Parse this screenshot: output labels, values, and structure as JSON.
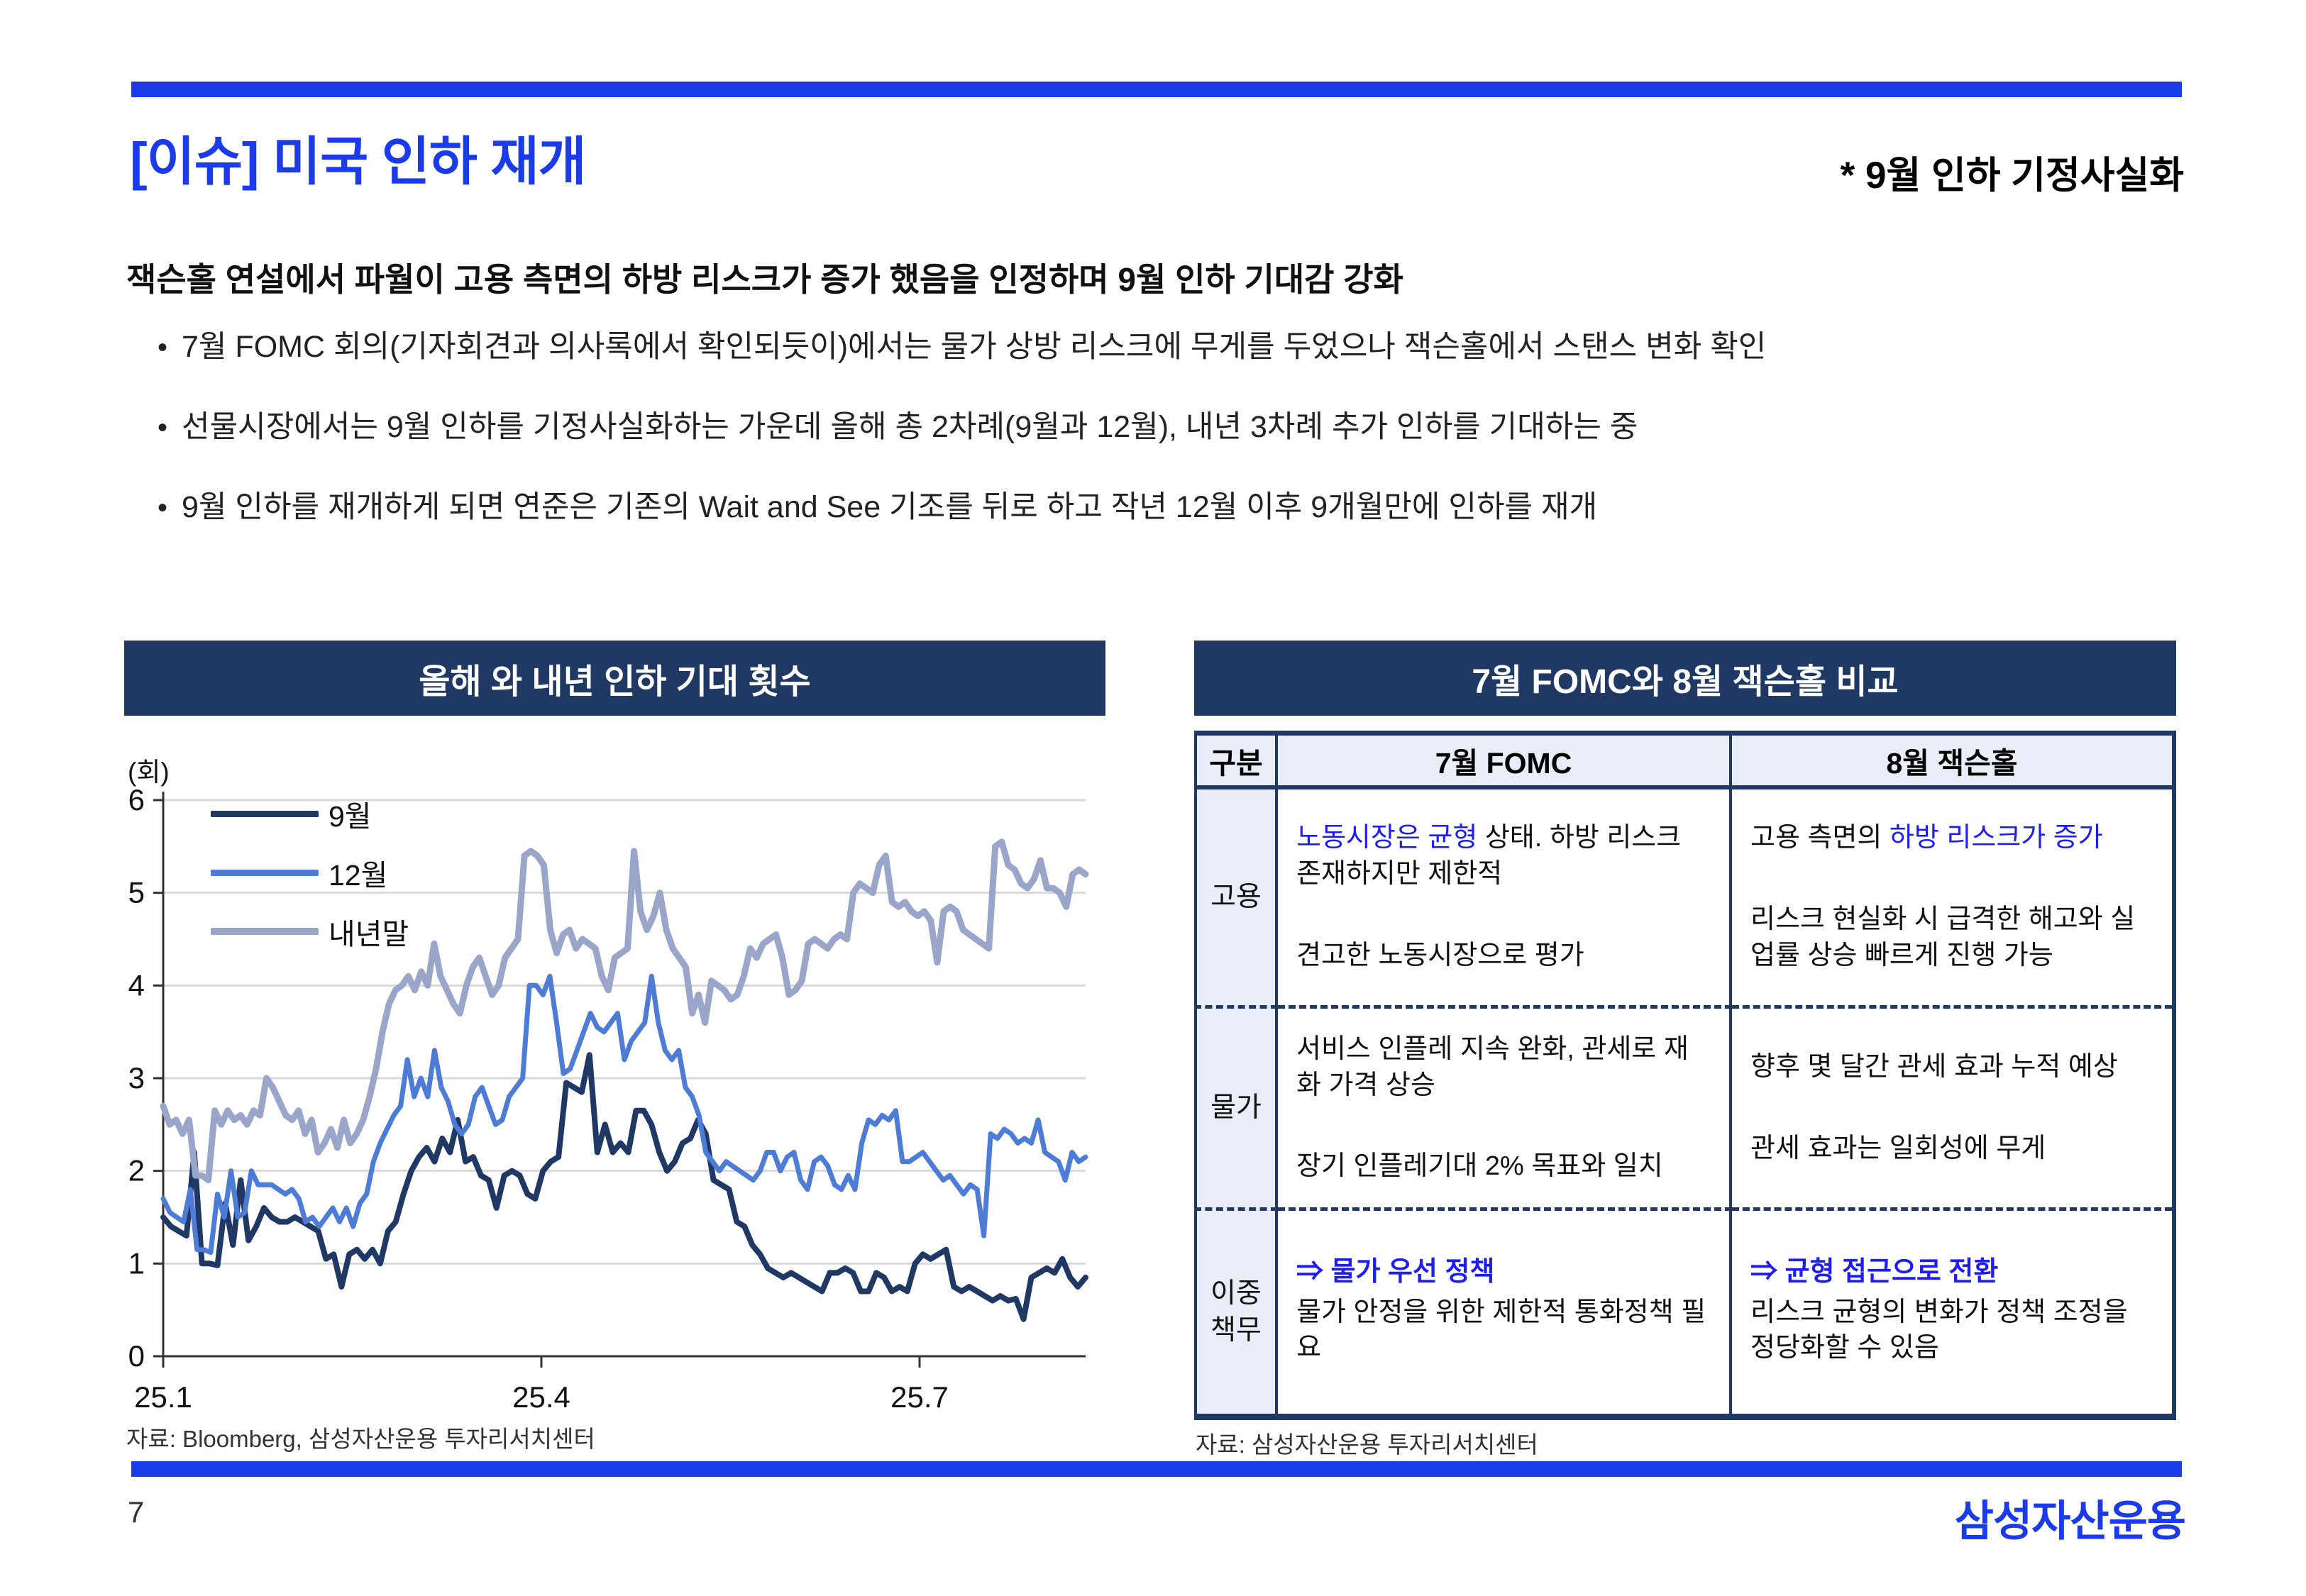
{
  "page": {
    "number": "7",
    "logo": "삼성자산운용"
  },
  "header": {
    "title": "[이슈] 미국 인하 재개",
    "subtitle": "* 9월 인하 기정사실화",
    "accent_color": "#1C3BE8"
  },
  "lede": "잭슨홀 연설에서 파월이 고용 측면의 하방 리스크가 증가 했음을 인정하며 9월 인하 기대감 강화",
  "bullets": [
    "7월 FOMC 회의(기자회견과 의사록에서 확인되듯이)에서는 물가 상방 리스크에 무게를 두었으나 잭슨홀에서 스탠스 변화 확인",
    "선물시장에서는 9월 인하를 기정사실화하는 가운데 올해 총 2차례(9월과 12월), 내년 3차례 추가 인하를 기대하는 중",
    "9월 인하를 재개하게 되면 연준은 기존의 Wait and See 기조를 뒤로 하고 작년 12월 이후 9개월만에 인하를 재개"
  ],
  "left_panel": {
    "title": "올해 와 내년 인하 기대 횟수",
    "unit_label": "(회)",
    "source": "자료: Bloomberg, 삼성자산운용 투자리서치센터",
    "banner_color": "#1F3864"
  },
  "right_panel": {
    "title": "7월 FOMC와 8월 잭슨홀 비교",
    "source": "자료: 삼성자산운용 투자리서치센터",
    "banner_color": "#1F3864",
    "table": {
      "headers": [
        "구분",
        "7월 FOMC",
        "8월 잭슨홀"
      ],
      "rows": [
        {
          "label": "고용",
          "tight": false,
          "fomc": [
            [
              {
                "t": "노동시장은 균형",
                "c": "blue"
              },
              {
                "t": " 상태. 하방 리스크 존재하지만 제한적",
                "c": "n"
              }
            ],
            [
              {
                "t": "견고한 노동시장으로 평가",
                "c": "n"
              }
            ]
          ],
          "jackson": [
            [
              {
                "t": "고용 측면의 ",
                "c": "n"
              },
              {
                "t": "하방 리스크가 증가",
                "c": "blue"
              }
            ],
            [
              {
                "t": "리스크 현실화 시 급격한 해고와 실업률 상승 빠르게 진행 가능",
                "c": "n"
              }
            ]
          ]
        },
        {
          "label": "물가",
          "tight": false,
          "fomc": [
            [
              {
                "t": "서비스 인플레 지속 완화, 관세로 재화 가격 상승",
                "c": "n"
              }
            ],
            [
              {
                "t": "장기 인플레기대 2% 목표와 일치",
                "c": "n"
              }
            ]
          ],
          "jackson": [
            [
              {
                "t": "향후 몇 달간 관세 효과 누적 예상",
                "c": "n"
              }
            ],
            [
              {
                "t": "관세 효과는 일회성에 무게",
                "c": "n"
              }
            ]
          ]
        },
        {
          "label": "이중책무",
          "tight": true,
          "fomc": [
            [
              {
                "t": "⇒ 물가 우선 정책",
                "c": "bluebold"
              }
            ],
            [
              {
                "t": "물가 안정을 위한 제한적 통화정책 필요",
                "c": "n"
              }
            ]
          ],
          "jackson": [
            [
              {
                "t": "⇒ 균형 접근으로 전환",
                "c": "bluebold"
              }
            ],
            [
              {
                "t": "리스크 균형의 변화가 정책 조정을 정당화할 수 있음",
                "c": "n"
              }
            ]
          ]
        }
      ]
    }
  },
  "chart_data": {
    "type": "line",
    "title": "올해 와 내년 인하 기대 횟수",
    "ylabel": "(회)",
    "ylim": [
      0,
      6
    ],
    "yticks": [
      0,
      1,
      2,
      3,
      4,
      5,
      6
    ],
    "grid": true,
    "legend_position": "top-left",
    "xticks": [
      {
        "label": "25.1",
        "pos": 0.0
      },
      {
        "label": "25.4",
        "pos": 0.41
      },
      {
        "label": "25.7",
        "pos": 0.82
      }
    ],
    "series": [
      {
        "name": "9월",
        "color": "#1F3864",
        "width": 8,
        "values": [
          1.5,
          1.4,
          1.35,
          1.3,
          2.2,
          1.0,
          1.0,
          0.98,
          1.65,
          1.2,
          1.9,
          1.25,
          1.4,
          1.6,
          1.5,
          1.45,
          1.45,
          1.5,
          1.45,
          1.4,
          1.35,
          1.05,
          1.1,
          0.75,
          1.1,
          1.15,
          1.05,
          1.15,
          1.0,
          1.35,
          1.45,
          1.75,
          2.0,
          2.15,
          2.25,
          2.1,
          2.35,
          2.2,
          2.55,
          2.1,
          2.15,
          1.95,
          1.9,
          1.6,
          1.95,
          2.0,
          1.95,
          1.75,
          1.7,
          2.0,
          2.1,
          2.15,
          2.95,
          2.9,
          2.85,
          3.25,
          2.2,
          2.5,
          2.2,
          2.3,
          2.2,
          2.65,
          2.65,
          2.5,
          2.2,
          2.0,
          2.1,
          2.3,
          2.35,
          2.55,
          2.4,
          1.9,
          1.85,
          1.8,
          1.45,
          1.4,
          1.2,
          1.1,
          0.95,
          0.9,
          0.85,
          0.9,
          0.85,
          0.8,
          0.75,
          0.7,
          0.9,
          0.9,
          0.95,
          0.9,
          0.7,
          0.7,
          0.9,
          0.85,
          0.7,
          0.75,
          0.7,
          1.0,
          1.1,
          1.05,
          1.1,
          1.15,
          0.75,
          0.7,
          0.75,
          0.7,
          0.65,
          0.6,
          0.65,
          0.6,
          0.62,
          0.4,
          0.85,
          0.9,
          0.95,
          0.9,
          1.05,
          0.85,
          0.75,
          0.85
        ]
      },
      {
        "name": "12월",
        "color": "#4D7CD6",
        "width": 7,
        "values": [
          1.7,
          1.55,
          1.5,
          1.45,
          1.8,
          1.15,
          1.15,
          1.12,
          1.75,
          1.5,
          2.0,
          1.5,
          1.55,
          2.0,
          1.85,
          1.85,
          1.85,
          1.8,
          1.75,
          1.8,
          1.7,
          1.45,
          1.5,
          1.4,
          1.5,
          1.6,
          1.45,
          1.6,
          1.4,
          1.65,
          1.75,
          2.1,
          2.3,
          2.45,
          2.6,
          2.7,
          3.2,
          2.8,
          3.0,
          2.8,
          3.3,
          2.9,
          2.75,
          2.5,
          2.4,
          2.5,
          2.8,
          2.9,
          2.7,
          2.5,
          2.55,
          2.8,
          2.9,
          3.0,
          4.0,
          4.0,
          3.9,
          4.1,
          3.6,
          3.05,
          3.1,
          3.3,
          3.5,
          3.7,
          3.55,
          3.5,
          3.6,
          3.7,
          3.2,
          3.4,
          3.5,
          3.6,
          4.1,
          3.6,
          3.3,
          3.2,
          3.3,
          2.9,
          2.8,
          2.6,
          2.2,
          2.1,
          2.0,
          2.1,
          2.05,
          2.0,
          1.95,
          1.9,
          2.0,
          2.2,
          2.2,
          2.0,
          2.15,
          2.2,
          1.9,
          1.8,
          2.1,
          2.15,
          2.05,
          1.85,
          1.8,
          1.95,
          1.8,
          2.3,
          2.55,
          2.5,
          2.6,
          2.55,
          2.65,
          2.1,
          2.1,
          2.15,
          2.2,
          2.1,
          2.0,
          1.9,
          1.95,
          1.85,
          1.75,
          1.85,
          1.8,
          1.3,
          2.4,
          2.35,
          2.45,
          2.4,
          2.3,
          2.35,
          2.3,
          2.55,
          2.2,
          2.15,
          2.1,
          1.9,
          2.2,
          2.1,
          2.15
        ]
      },
      {
        "name": "내년말",
        "color": "#99A5C9",
        "width": 9,
        "values": [
          2.7,
          2.5,
          2.55,
          2.4,
          2.55,
          1.95,
          1.95,
          1.9,
          2.65,
          2.5,
          2.65,
          2.55,
          2.6,
          2.5,
          2.65,
          2.6,
          3.0,
          2.9,
          2.75,
          2.6,
          2.55,
          2.65,
          2.4,
          2.55,
          2.2,
          2.3,
          2.45,
          2.25,
          2.55,
          2.3,
          2.4,
          2.55,
          2.8,
          3.1,
          3.5,
          3.8,
          3.95,
          4.0,
          4.1,
          3.95,
          4.15,
          4.0,
          4.45,
          4.1,
          3.95,
          3.8,
          3.7,
          4.0,
          4.2,
          4.3,
          4.1,
          3.9,
          4.0,
          4.3,
          4.4,
          4.5,
          5.4,
          5.45,
          5.4,
          5.3,
          4.6,
          4.35,
          4.55,
          4.6,
          4.4,
          4.5,
          4.45,
          4.4,
          4.1,
          3.95,
          4.3,
          4.35,
          4.4,
          5.45,
          4.8,
          4.6,
          4.75,
          5.0,
          4.6,
          4.4,
          4.3,
          4.2,
          3.7,
          3.9,
          3.6,
          4.05,
          4.0,
          3.95,
          3.85,
          3.9,
          4.1,
          4.4,
          4.3,
          4.45,
          4.5,
          4.55,
          4.3,
          3.9,
          3.95,
          4.05,
          4.45,
          4.5,
          4.45,
          4.4,
          4.5,
          4.55,
          4.5,
          5.0,
          5.1,
          5.05,
          5.0,
          5.3,
          5.4,
          4.9,
          4.85,
          4.9,
          4.8,
          4.75,
          4.8,
          4.7,
          4.25,
          4.8,
          4.85,
          4.8,
          4.6,
          4.55,
          4.5,
          4.45,
          4.4,
          5.5,
          5.55,
          5.3,
          5.25,
          5.1,
          5.05,
          5.15,
          5.35,
          5.05,
          5.05,
          5.0,
          4.85,
          5.2,
          5.25,
          5.2
        ]
      }
    ]
  }
}
